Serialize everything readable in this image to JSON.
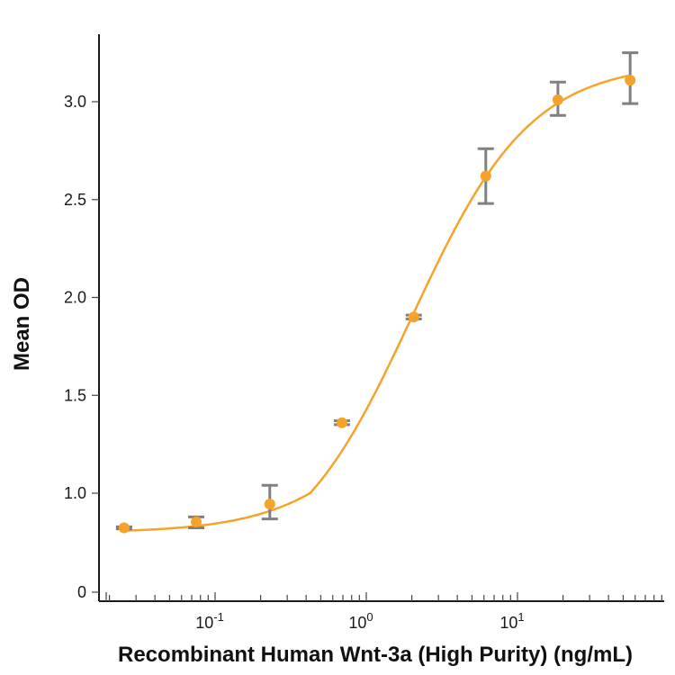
{
  "chart_data": {
    "type": "scatter",
    "title": "",
    "xlabel": "Recombinant Human Wnt-3a (High Purity) (ng/mL)",
    "ylabel": "Mean OD",
    "xscale": "log",
    "xlim": [
      0.0125,
      90
    ],
    "ylim": [
      0,
      3.3
    ],
    "y_ticks": [
      "0",
      "1.0",
      "1.5",
      "2.0",
      "2.5",
      "3.0"
    ],
    "x_tick_labels": [
      {
        "value": 0.1,
        "base": "10",
        "exp": "-1"
      },
      {
        "value": 1,
        "base": "10",
        "exp": "0"
      },
      {
        "value": 10,
        "base": "10",
        "exp": "1"
      }
    ],
    "grid": false,
    "legend": "none",
    "series": [
      {
        "x": [
          0.025,
          0.075,
          0.23,
          0.69,
          2.06,
          6.17,
          18.5,
          55.6
        ],
        "y": [
          0.65,
          0.71,
          0.89,
          1.36,
          1.9,
          2.62,
          3.01,
          3.11
        ],
        "err_low": [
          0.64,
          0.65,
          0.74,
          1.35,
          1.89,
          2.48,
          2.93,
          2.99
        ],
        "err_high": [
          0.66,
          0.76,
          1.04,
          1.37,
          1.91,
          2.76,
          3.1,
          3.25
        ]
      }
    ],
    "fit_curve": {
      "type": "4PL",
      "bottom": 0.6,
      "top": 3.2,
      "ec50": 2.0,
      "hill": 1.1
    },
    "colors": {
      "points": "#f5a32a",
      "fit": "#f5a32a",
      "error_bars": "#808080",
      "axes": "#1a1a1a"
    }
  }
}
